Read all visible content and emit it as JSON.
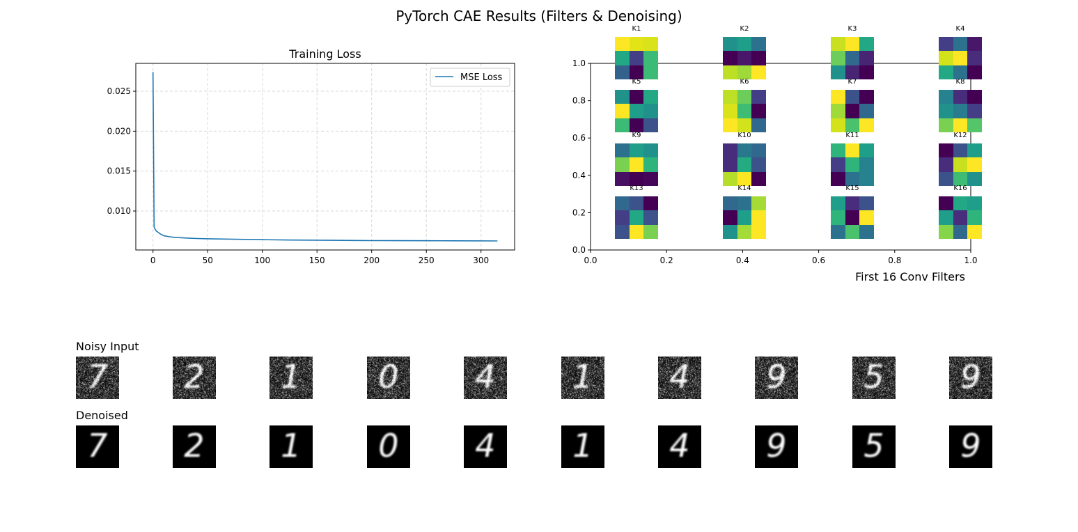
{
  "suptitle": "PyTorch CAE Results (Filters & Denoising)",
  "chart_data": [
    {
      "type": "line",
      "title": "Training Loss",
      "xlabel": "",
      "ylabel": "",
      "xlim": [
        -15.75,
        330.75
      ],
      "ylim": [
        0.00512,
        0.02849
      ],
      "xticks": [
        0,
        50,
        100,
        150,
        200,
        250,
        300
      ],
      "xtick_labels": [
        "0",
        "50",
        "100",
        "150",
        "200",
        "250",
        "300"
      ],
      "yticks": [
        0.01,
        0.015,
        0.02,
        0.025
      ],
      "ytick_labels": [
        "0.010",
        "0.015",
        "0.020",
        "0.025"
      ],
      "grid": true,
      "legend_position": "top-right",
      "series": [
        {
          "name": "MSE Loss",
          "color": "#1f77b4",
          "x": [
            0,
            1,
            2,
            3,
            5,
            7,
            10,
            15,
            20,
            30,
            40,
            50,
            75,
            100,
            125,
            150,
            175,
            200,
            225,
            250,
            275,
            300,
            315
          ],
          "y": [
            0.0274,
            0.008,
            0.0077,
            0.0075,
            0.0073,
            0.0071,
            0.0069,
            0.00678,
            0.0067,
            0.00662,
            0.00656,
            0.00652,
            0.00646,
            0.00641,
            0.00637,
            0.00635,
            0.00632,
            0.0063,
            0.00629,
            0.00628,
            0.00627,
            0.00626,
            0.00625
          ]
        }
      ]
    },
    {
      "type": "heatmap",
      "title": "First 16 Conv Filters",
      "colormap": "viridis",
      "xlim": [
        0,
        1
      ],
      "ylim": [
        0,
        1
      ],
      "xtick_labels": [
        "0.0",
        "0.2",
        "0.4",
        "0.6",
        "0.8",
        "1.0"
      ],
      "ytick_labels": [
        "0.0",
        "0.2",
        "0.4",
        "0.6",
        "0.8",
        "1.0"
      ],
      "kernels": [
        {
          "label": "K1",
          "cells": [
            [
              "#fde725",
              "#e2e418",
              "#dae319"
            ],
            [
              "#22a884",
              "#433e85",
              "#3bbb75"
            ],
            [
              "#33638d",
              "#440154",
              "#3bbb75"
            ]
          ]
        },
        {
          "label": "K2",
          "cells": [
            [
              "#21918c",
              "#1f9e89",
              "#2c728e"
            ],
            [
              "#440154",
              "#481769",
              "#440154"
            ],
            [
              "#bddf26",
              "#a0da39",
              "#fde725"
            ]
          ]
        },
        {
          "label": "K3",
          "cells": [
            [
              "#c8e020",
              "#fde725",
              "#22a884"
            ],
            [
              "#6ccd5a",
              "#31688e",
              "#482475"
            ],
            [
              "#21918c",
              "#482475",
              "#440154"
            ]
          ]
        },
        {
          "label": "K4",
          "cells": [
            [
              "#433e85",
              "#2c728e",
              "#481769"
            ],
            [
              "#d2e21b",
              "#fde725",
              "#472d7b"
            ],
            [
              "#22a884",
              "#2c728e",
              "#440154"
            ]
          ]
        },
        {
          "label": "K5",
          "cells": [
            [
              "#21918c",
              "#440154",
              "#22a884"
            ],
            [
              "#fde725",
              "#1f9e89",
              "#21918c"
            ],
            [
              "#3bbb75",
              "#440154",
              "#3b528b"
            ]
          ]
        },
        {
          "label": "K6",
          "cells": [
            [
              "#bddf26",
              "#6ccd5a",
              "#433e85"
            ],
            [
              "#dae319",
              "#3fbc73",
              "#440154"
            ],
            [
              "#fde725",
              "#d2e21b",
              "#31688e"
            ]
          ]
        },
        {
          "label": "K7",
          "cells": [
            [
              "#fde725",
              "#3b528b",
              "#440154"
            ],
            [
              "#a0da39",
              "#440154",
              "#31688e"
            ],
            [
              "#d2e21b",
              "#4ac16d",
              "#fde725"
            ]
          ]
        },
        {
          "label": "K8",
          "cells": [
            [
              "#26828e",
              "#472d7b",
              "#440154"
            ],
            [
              "#21918c",
              "#287c8e",
              "#433e85"
            ],
            [
              "#7ad151",
              "#fde725",
              "#54c568"
            ]
          ]
        },
        {
          "label": "K9",
          "cells": [
            [
              "#2c728e",
              "#1f9e89",
              "#21918c"
            ],
            [
              "#7ad151",
              "#fde725",
              "#2fb47c"
            ],
            [
              "#471063",
              "#440154",
              "#450559"
            ]
          ]
        },
        {
          "label": "K10",
          "cells": [
            [
              "#472d7b",
              "#2a788e",
              "#31688e"
            ],
            [
              "#472d7b",
              "#25ab82",
              "#3b528b"
            ],
            [
              "#b5de2b",
              "#fde725",
              "#440154"
            ]
          ]
        },
        {
          "label": "K11",
          "cells": [
            [
              "#2fb47c",
              "#fde725",
              "#1f9e89"
            ],
            [
              "#433e85",
              "#2fb47c",
              "#26828e"
            ],
            [
              "#440154",
              "#2c728e",
              "#26828e"
            ]
          ]
        },
        {
          "label": "K12",
          "cells": [
            [
              "#440154",
              "#3b528b",
              "#1f9e89"
            ],
            [
              "#472d7b",
              "#c8e020",
              "#fde725"
            ],
            [
              "#3b528b",
              "#3fbc73",
              "#21918c"
            ]
          ]
        },
        {
          "label": "K13",
          "cells": [
            [
              "#31688e",
              "#3b528b",
              "#440154"
            ],
            [
              "#433e85",
              "#22a884",
              "#3b528b"
            ],
            [
              "#3b528b",
              "#fde725",
              "#7ad151"
            ]
          ]
        },
        {
          "label": "K14",
          "cells": [
            [
              "#31688e",
              "#2c728e",
              "#a5db36"
            ],
            [
              "#440154",
              "#1f9e89",
              "#fde725"
            ],
            [
              "#21918c",
              "#a5db36",
              "#fde725"
            ]
          ]
        },
        {
          "label": "K15",
          "cells": [
            [
              "#1f9e89",
              "#472d7b",
              "#3b528b"
            ],
            [
              "#2fb47c",
              "#440154",
              "#fde725"
            ],
            [
              "#2c728e",
              "#4ac16d",
              "#2c728e"
            ]
          ]
        },
        {
          "label": "K16",
          "cells": [
            [
              "#440154",
              "#22a884",
              "#1f9e89"
            ],
            [
              "#1f9e89",
              "#472d7b",
              "#2fb47c"
            ],
            [
              "#86d549",
              "#31688e",
              "#fde725"
            ]
          ]
        }
      ]
    }
  ],
  "denoising": {
    "noisy_label": "Noisy Input",
    "denoised_label": "Denoised",
    "digits": [
      7,
      2,
      1,
      0,
      4,
      1,
      4,
      9,
      5,
      9
    ]
  }
}
